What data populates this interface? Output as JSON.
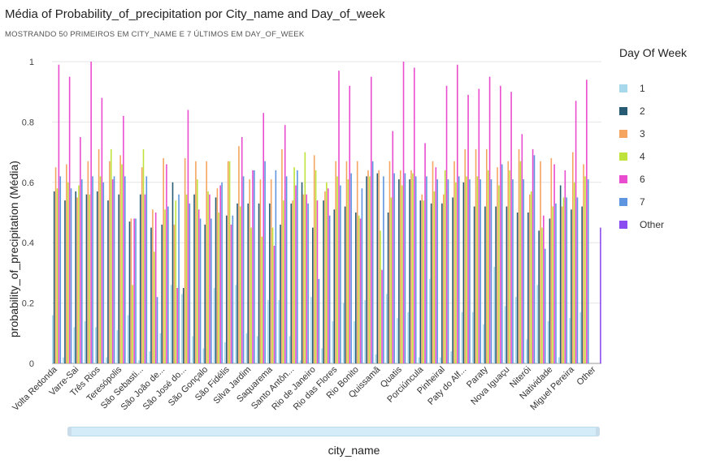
{
  "header": {
    "title": "Média of Probability_of_precipitation por City_name and Day_of_week",
    "subtitle": "MOSTRANDO 50 PRIMEIROS EM CITY_NAME E 7 ÚLTIMOS EM DAY_OF_WEEK"
  },
  "legend": {
    "title": "Day Of Week",
    "items": [
      {
        "label": "1",
        "color": "#a7d8ec"
      },
      {
        "label": "2",
        "color": "#265b73"
      },
      {
        "label": "3",
        "color": "#f5a55f"
      },
      {
        "label": "4",
        "color": "#bfe33a"
      },
      {
        "label": "6",
        "color": "#e94ccf"
      },
      {
        "label": "7",
        "color": "#5e95e0"
      },
      {
        "label": "Other",
        "color": "#8a4cf0"
      }
    ]
  },
  "axes": {
    "xlabel": "city_name",
    "ylabel": "probability_of_precipitation (Média)"
  },
  "chart_data": {
    "type": "bar",
    "xlabel": "city_name",
    "ylabel": "probability_of_precipitation (Média)",
    "ylim": [
      0,
      1
    ],
    "yticks": [
      "0",
      "0.2",
      "0.4",
      "0.6",
      "0.8",
      "1"
    ],
    "categories": [
      "Volta Redonda",
      "",
      "Varre-Sai",
      "",
      "Três Rios",
      "",
      "Teresópolis",
      "",
      "São Sebasti...",
      "",
      "São João de...",
      "",
      "São José do...",
      "",
      "São Gonçalo",
      "",
      "São Fidélis",
      "",
      "Silva Jardim",
      "",
      "Saquarema",
      "",
      "Santo Antôn...",
      "",
      "Rio de Janeiro",
      "",
      "Rio das Flores",
      "",
      "Rio Bonito",
      "",
      "Quissamã",
      "",
      "Quatis",
      "",
      "Porciúncula",
      "",
      "Pinheiral",
      "",
      "Paty do Alf...",
      "",
      "Paraty",
      "",
      "Nova Iguaçu",
      "",
      "Niterói",
      "",
      "Natividade",
      "",
      "Miguel Pereira",
      "",
      "Other"
    ],
    "series": [
      {
        "name": "1",
        "values": [
          0.16,
          0.02,
          0.12,
          0.14,
          0.12,
          0.02,
          0.11,
          0.16,
          0.01,
          0.04,
          0.1,
          0.26,
          0.23,
          0.09,
          0.05,
          0.25,
          0.07,
          0.26,
          0.1,
          0.09,
          0.21,
          0.21,
          0.09,
          0.01,
          0.22,
          0.05,
          0.14,
          0.2,
          0.14,
          0.21,
          0.03,
          0.23,
          0.15,
          0.17,
          0.02,
          0.28,
          0.02,
          0.04,
          0.17,
          0.17,
          0.13,
          0.32,
          0.19,
          0.22,
          0.08,
          0.26,
          0.14,
          0.02,
          0.15,
          0.17,
          0
        ]
      },
      {
        "name": "2",
        "values": [
          0.57,
          0.54,
          0.57,
          0.56,
          0.57,
          0.54,
          0.56,
          0.47,
          0.56,
          0.45,
          0.46,
          0.6,
          0.25,
          0.56,
          0.46,
          0.55,
          0.49,
          0.53,
          0.53,
          0.53,
          0.53,
          0.46,
          0.53,
          0.6,
          0.45,
          0.54,
          0.51,
          0.52,
          0.5,
          0.62,
          0.63,
          0.5,
          0.61,
          0.61,
          0.54,
          0.53,
          0.53,
          0.55,
          0.6,
          0.52,
          0.52,
          0.52,
          0.52,
          0.5,
          0.5,
          0.44,
          0.48,
          0.59,
          0.51,
          0.52,
          0
        ]
      },
      {
        "name": "3",
        "values": [
          0.65,
          0.66,
          0.55,
          0.67,
          0.71,
          0.67,
          0.69,
          0.48,
          0.65,
          0.51,
          0.68,
          0.46,
          0.68,
          0.67,
          0.67,
          0.58,
          0.67,
          0.72,
          0.61,
          0.61,
          0.61,
          0.71,
          0.54,
          0.56,
          0.69,
          0.57,
          0.67,
          0.67,
          0.67,
          0.64,
          0.64,
          0.67,
          0.64,
          0.64,
          0.56,
          0.67,
          0.56,
          0.67,
          0.71,
          0.71,
          0.71,
          0.65,
          0.67,
          0.71,
          0.56,
          0.67,
          0.68,
          0.52,
          0.7,
          0.66,
          0
        ]
      },
      {
        "name": "4",
        "values": [
          0.58,
          0.6,
          0.59,
          0.56,
          0.62,
          0.71,
          0.66,
          0.26,
          0.71,
          0.37,
          0.51,
          0.54,
          0.56,
          0.61,
          0.57,
          0.5,
          0.67,
          0.52,
          0.45,
          0.42,
          0.45,
          0.54,
          0.65,
          0.7,
          0.64,
          0.6,
          0.62,
          0.61,
          0.49,
          0.62,
          0.44,
          0.55,
          0.59,
          0.63,
          0.54,
          0.57,
          0.64,
          0.6,
          0.62,
          0.62,
          0.64,
          0.59,
          0.64,
          0.67,
          0.57,
          0.45,
          0.52,
          0.55,
          0.6,
          0.62,
          0
        ]
      },
      {
        "name": "6",
        "values": [
          0.99,
          0.95,
          0.75,
          1.0,
          0.88,
          0.61,
          0.82,
          0.48,
          0.56,
          0.5,
          0.66,
          0.25,
          0.84,
          0.51,
          0.56,
          0.59,
          0.46,
          0.75,
          0.64,
          0.83,
          0.39,
          0.79,
          0.59,
          0.56,
          0.54,
          0.58,
          0.97,
          0.92,
          0.48,
          0.95,
          0.31,
          0.77,
          1.0,
          0.98,
          0.73,
          0.65,
          0.92,
          0.99,
          0.89,
          0.91,
          0.95,
          0.92,
          0.9,
          0.76,
          0.71,
          0.49,
          0.66,
          0.64,
          0.87,
          0.94,
          0
        ]
      },
      {
        "name": "7",
        "values": [
          0.62,
          0.58,
          0.61,
          0.62,
          0.6,
          0.62,
          0.62,
          0.48,
          0.62,
          0.22,
          0.52,
          0.56,
          0.53,
          0.48,
          0.48,
          0.6,
          0.49,
          0.62,
          0.64,
          0.67,
          0.64,
          0.62,
          0.64,
          0.53,
          0.28,
          0.49,
          0.59,
          0.63,
          0.58,
          0.67,
          0.62,
          0.63,
          0.63,
          0.62,
          0.62,
          0.61,
          0.61,
          0.62,
          0.61,
          0.61,
          0.61,
          0.66,
          0.61,
          0.61,
          0.69,
          0.38,
          0.53,
          0.55,
          0.55,
          0.61,
          0
        ]
      },
      {
        "name": "Other",
        "values": [
          0,
          0,
          0,
          0,
          0,
          0,
          0,
          0,
          0,
          0,
          0,
          0,
          0,
          0,
          0,
          0,
          0,
          0,
          0,
          0,
          0,
          0,
          0,
          0,
          0,
          0,
          0,
          0,
          0,
          0,
          0,
          0,
          0,
          0,
          0,
          0,
          0,
          0,
          0,
          0,
          0,
          0,
          0,
          0,
          0,
          0,
          0,
          0,
          0,
          0,
          0.45
        ]
      }
    ]
  }
}
